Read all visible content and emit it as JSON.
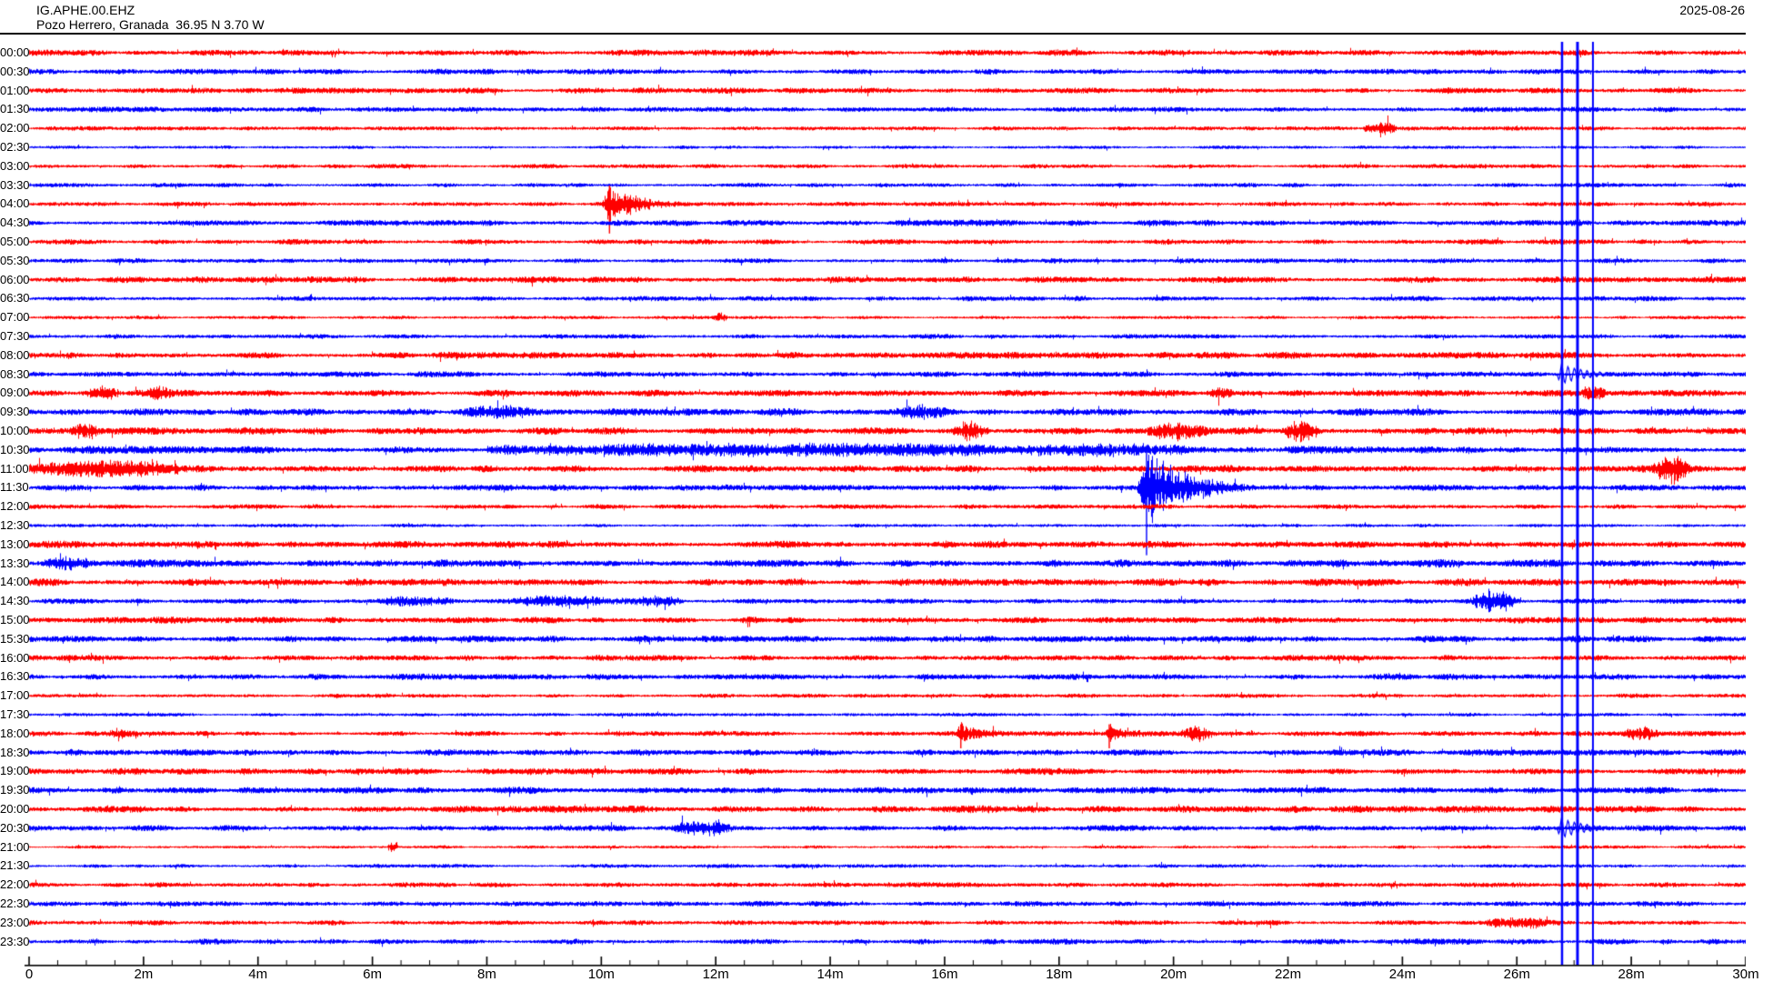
{
  "header": {
    "station_id": "IG.APHE.00.EHZ",
    "location": "Pozo Herrero, Granada  36.95 N 3.70 W",
    "date": "2025-08-26"
  },
  "colors": {
    "trace_hour": "#ff0000",
    "trace_half_hour": "#0000ff",
    "clip_line": "#0000ff",
    "text": "#000000",
    "axis": "#000000",
    "background": "#ffffff"
  },
  "chart_data": {
    "type": "helicorder",
    "title": "IG.APHE.00.EHZ",
    "subtitle": "Pozo Herrero, Granada  36.95 N 3.70 W",
    "date": "2025-08-26",
    "minutes_per_line": 30,
    "x_axis": {
      "min_minutes": 0,
      "max_minutes": 30,
      "major_tick_minutes": 2,
      "minor_tick_minutes": 0.5,
      "tick_labels": [
        "0",
        "2m",
        "4m",
        "6m",
        "8m",
        "10m",
        "12m",
        "14m",
        "16m",
        "18m",
        "20m",
        "22m",
        "24m",
        "26m",
        "28m",
        "30m"
      ]
    },
    "rows": [
      {
        "time": "00:00",
        "color": "red",
        "noise": 3.2
      },
      {
        "time": "00:30",
        "color": "blue",
        "noise": 3.0
      },
      {
        "time": "01:00",
        "color": "red",
        "noise": 3.0
      },
      {
        "time": "01:30",
        "color": "blue",
        "noise": 2.8
      },
      {
        "time": "02:00",
        "color": "red",
        "noise": 2.2
      },
      {
        "time": "02:30",
        "color": "blue",
        "noise": 1.8
      },
      {
        "time": "03:00",
        "color": "red",
        "noise": 2.3
      },
      {
        "time": "03:30",
        "color": "blue",
        "noise": 2.3
      },
      {
        "time": "04:00",
        "color": "red",
        "noise": 2.3
      },
      {
        "time": "04:30",
        "color": "blue",
        "noise": 3.2
      },
      {
        "time": "05:00",
        "color": "red",
        "noise": 2.8
      },
      {
        "time": "05:30",
        "color": "blue",
        "noise": 2.6
      },
      {
        "time": "06:00",
        "color": "red",
        "noise": 3.2
      },
      {
        "time": "06:30",
        "color": "blue",
        "noise": 2.6
      },
      {
        "time": "07:00",
        "color": "red",
        "noise": 1.8
      },
      {
        "time": "07:30",
        "color": "blue",
        "noise": 2.4
      },
      {
        "time": "08:00",
        "color": "red",
        "noise": 3.4
      },
      {
        "time": "08:30",
        "color": "blue",
        "noise": 3.0
      },
      {
        "time": "09:00",
        "color": "red",
        "noise": 3.5
      },
      {
        "time": "09:30",
        "color": "blue",
        "noise": 3.7
      },
      {
        "time": "10:00",
        "color": "red",
        "noise": 3.7
      },
      {
        "time": "10:30",
        "color": "blue",
        "noise": 3.9
      },
      {
        "time": "11:00",
        "color": "red",
        "noise": 3.7
      },
      {
        "time": "11:30",
        "color": "blue",
        "noise": 3.1
      },
      {
        "time": "12:00",
        "color": "red",
        "noise": 2.5
      },
      {
        "time": "12:30",
        "color": "blue",
        "noise": 1.8
      },
      {
        "time": "13:00",
        "color": "red",
        "noise": 3.7
      },
      {
        "time": "13:30",
        "color": "blue",
        "noise": 4.0
      },
      {
        "time": "14:00",
        "color": "red",
        "noise": 3.8
      },
      {
        "time": "14:30",
        "color": "blue",
        "noise": 2.7
      },
      {
        "time": "15:00",
        "color": "red",
        "noise": 3.4
      },
      {
        "time": "15:30",
        "color": "blue",
        "noise": 3.4
      },
      {
        "time": "16:00",
        "color": "red",
        "noise": 3.0
      },
      {
        "time": "16:30",
        "color": "blue",
        "noise": 3.2
      },
      {
        "time": "17:00",
        "color": "red",
        "noise": 2.2
      },
      {
        "time": "17:30",
        "color": "blue",
        "noise": 1.9
      },
      {
        "time": "18:00",
        "color": "red",
        "noise": 2.7
      },
      {
        "time": "18:30",
        "color": "blue",
        "noise": 3.2
      },
      {
        "time": "19:00",
        "color": "red",
        "noise": 3.4
      },
      {
        "time": "19:30",
        "color": "blue",
        "noise": 3.4
      },
      {
        "time": "20:00",
        "color": "red",
        "noise": 3.6
      },
      {
        "time": "20:30",
        "color": "blue",
        "noise": 3.0
      },
      {
        "time": "21:00",
        "color": "red",
        "noise": 1.7
      },
      {
        "time": "21:30",
        "color": "blue",
        "noise": 2.1
      },
      {
        "time": "22:00",
        "color": "red",
        "noise": 2.6
      },
      {
        "time": "22:30",
        "color": "blue",
        "noise": 2.7
      },
      {
        "time": "23:00",
        "color": "red",
        "noise": 2.7
      },
      {
        "time": "23:30",
        "color": "blue",
        "noise": 2.9
      }
    ],
    "events": [
      {
        "row": "02:00",
        "start_min": 23.3,
        "duration_min": 0.6,
        "amp": 9,
        "type": "burst"
      },
      {
        "row": "04:00",
        "start_min": 10.0,
        "duration_min": 2.2,
        "amp": 24,
        "type": "quake"
      },
      {
        "row": "07:00",
        "start_min": 11.95,
        "duration_min": 0.25,
        "amp": 6,
        "type": "burst"
      },
      {
        "row": "08:30",
        "start_min": 26.7,
        "duration_min": 1.0,
        "amp": 13,
        "type": "wiggle"
      },
      {
        "row": "09:00",
        "start_min": 1.0,
        "duration_min": 0.6,
        "amp": 7,
        "type": "burst"
      },
      {
        "row": "09:00",
        "start_min": 2.05,
        "duration_min": 0.45,
        "amp": 6,
        "type": "burst"
      },
      {
        "row": "09:00",
        "start_min": 20.55,
        "duration_min": 0.5,
        "amp": 7,
        "type": "burst"
      },
      {
        "row": "09:00",
        "start_min": 27.1,
        "duration_min": 0.5,
        "amp": 8,
        "type": "burst"
      },
      {
        "row": "09:30",
        "start_min": 7.5,
        "duration_min": 1.3,
        "amp": 6,
        "type": "burst"
      },
      {
        "row": "09:30",
        "start_min": 15.1,
        "duration_min": 1.0,
        "amp": 6,
        "type": "burst"
      },
      {
        "row": "10:00",
        "start_min": 0.7,
        "duration_min": 0.6,
        "amp": 9,
        "type": "burst"
      },
      {
        "row": "10:00",
        "start_min": 16.1,
        "duration_min": 0.7,
        "amp": 8,
        "type": "burst"
      },
      {
        "row": "10:00",
        "start_min": 19.5,
        "duration_min": 1.1,
        "amp": 10,
        "type": "burst"
      },
      {
        "row": "10:00",
        "start_min": 21.9,
        "duration_min": 0.7,
        "amp": 10,
        "type": "burst"
      },
      {
        "row": "10:30",
        "start_min": 8.0,
        "duration_min": 9.5,
        "amp": 5,
        "type": "tremor"
      },
      {
        "row": "10:30",
        "start_min": 17.6,
        "duration_min": 2.6,
        "amp": 6,
        "type": "tremor"
      },
      {
        "row": "11:00",
        "start_min": 0.0,
        "duration_min": 2.6,
        "amp": 7,
        "type": "tremor"
      },
      {
        "row": "11:00",
        "start_min": 28.3,
        "duration_min": 0.8,
        "amp": 16,
        "type": "spindle"
      },
      {
        "row": "11:30",
        "start_min": 19.35,
        "duration_min": 2.8,
        "amp": 55,
        "type": "quake"
      },
      {
        "row": "13:30",
        "start_min": 0.2,
        "duration_min": 1.0,
        "amp": 6,
        "type": "burst"
      },
      {
        "row": "14:30",
        "start_min": 6.0,
        "duration_min": 1.4,
        "amp": 5,
        "type": "burst"
      },
      {
        "row": "14:30",
        "start_min": 8.3,
        "duration_min": 2.3,
        "amp": 5,
        "type": "burst"
      },
      {
        "row": "14:30",
        "start_min": 10.3,
        "duration_min": 1.2,
        "amp": 5,
        "type": "burst"
      },
      {
        "row": "14:30",
        "start_min": 25.1,
        "duration_min": 1.0,
        "amp": 13,
        "type": "spindle"
      },
      {
        "row": "18:00",
        "start_min": 1.3,
        "duration_min": 0.7,
        "amp": 5,
        "type": "burst"
      },
      {
        "row": "18:00",
        "start_min": 16.2,
        "duration_min": 1.2,
        "amp": 12,
        "type": "quake"
      },
      {
        "row": "18:00",
        "start_min": 18.8,
        "duration_min": 1.1,
        "amp": 12,
        "type": "quake"
      },
      {
        "row": "18:00",
        "start_min": 20.1,
        "duration_min": 0.6,
        "amp": 8,
        "type": "burst"
      },
      {
        "row": "18:00",
        "start_min": 27.8,
        "duration_min": 0.7,
        "amp": 6,
        "type": "burst"
      },
      {
        "row": "20:30",
        "start_min": 11.2,
        "duration_min": 1.1,
        "amp": 8,
        "type": "burst"
      },
      {
        "row": "20:30",
        "start_min": 26.7,
        "duration_min": 1.0,
        "amp": 13,
        "type": "wiggle"
      },
      {
        "row": "21:00",
        "start_min": 6.25,
        "duration_min": 0.2,
        "amp": 6,
        "type": "burst"
      },
      {
        "row": "23:00",
        "start_min": 25.4,
        "duration_min": 1.2,
        "amp": 6,
        "type": "burst"
      }
    ],
    "clip_lines": {
      "comment_visible": "three full-height clipped-event lines",
      "minutes": [
        26.79,
        27.06,
        27.33
      ],
      "widths": [
        2.5,
        3,
        2
      ],
      "color": "#0000ff"
    }
  }
}
